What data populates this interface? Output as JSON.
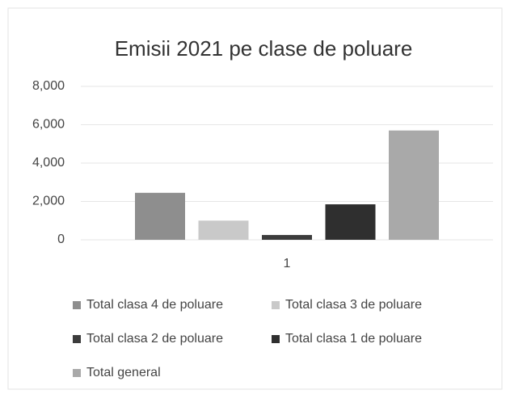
{
  "chart_data": {
    "type": "bar",
    "title": "Emisii 2021 pe clase de poluare",
    "categories": [
      "1"
    ],
    "series": [
      {
        "name": "Total clasa 4 de poluare",
        "color": "#8e8e8e",
        "values": [
          2450
        ]
      },
      {
        "name": "Total clasa 3 de poluare",
        "color": "#c9c9c9",
        "values": [
          1000
        ]
      },
      {
        "name": "Total clasa 2 de poluare",
        "color": "#3c3c3c",
        "values": [
          250
        ]
      },
      {
        "name": "Total clasa 1 de poluare",
        "color": "#2f2f2f",
        "values": [
          1850
        ]
      },
      {
        "name": "Total general",
        "color": "#a9a9a9",
        "values": [
          5700
        ]
      }
    ],
    "ylim": [
      0,
      8000
    ],
    "yticks": [
      0,
      {
        "value": 2000,
        "label": "2,000"
      },
      {
        "value": 4000,
        "label": "4,000"
      },
      {
        "value": 6000,
        "label": "6,000"
      },
      {
        "value": 8000,
        "label": "8,000"
      }
    ],
    "grid": true,
    "legend": "bottom"
  }
}
